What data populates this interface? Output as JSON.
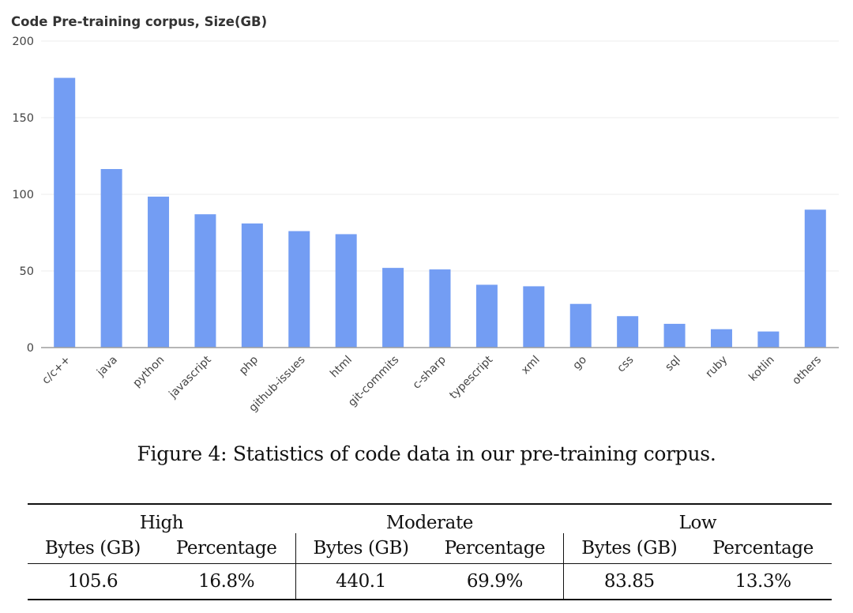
{
  "chart_data": {
    "type": "bar",
    "title": "Code Pre-training corpus, Size(GB)",
    "xlabel": "",
    "ylabel": "",
    "ylim": [
      0,
      200
    ],
    "yticks": [
      0,
      50,
      100,
      150,
      200
    ],
    "grid": true,
    "bar_color": "#739DF3",
    "categories": [
      "c/c++",
      "java",
      "python",
      "javascript",
      "php",
      "github-issues",
      "html",
      "git-commits",
      "c-sharp",
      "typescript",
      "xml",
      "go",
      "css",
      "sql",
      "ruby",
      "kotlin",
      "others"
    ],
    "values": [
      176,
      116.5,
      98.5,
      87,
      81,
      76,
      74,
      52,
      51,
      41,
      40,
      28.5,
      20.5,
      15.5,
      12,
      10.5,
      90
    ]
  },
  "caption": "Figure 4: Statistics of code data in our pre-training corpus.",
  "table": {
    "groups": [
      "High",
      "Moderate",
      "Low"
    ],
    "subheaders": [
      "Bytes (GB)",
      "Percentage",
      "Bytes (GB)",
      "Percentage",
      "Bytes (GB)",
      "Percentage"
    ],
    "rows": [
      [
        "105.6",
        "16.8%",
        "440.1",
        "69.9%",
        "83.85",
        "13.3%"
      ]
    ]
  }
}
